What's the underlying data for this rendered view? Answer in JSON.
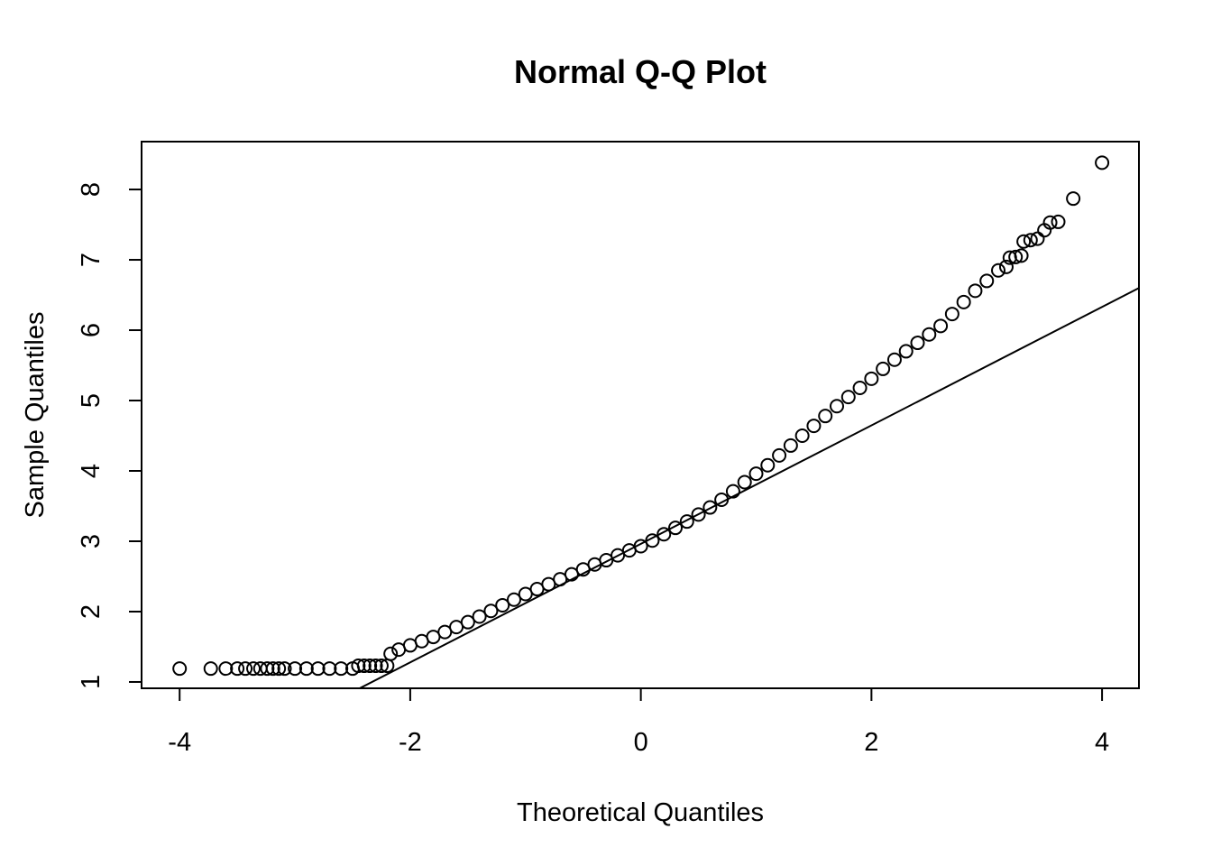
{
  "chart_data": {
    "type": "scatter",
    "title": "Normal Q-Q Plot",
    "x_label": "Theoretical Quantiles",
    "y_label": "Sample Quantiles",
    "x": [
      -4.0,
      -3.73,
      -3.6,
      -3.5,
      -3.43,
      -3.36,
      -3.3,
      -3.24,
      -3.19,
      -3.14,
      -3.09,
      -3.0,
      -2.9,
      -2.8,
      -2.7,
      -2.6,
      -2.5,
      -2.45,
      -2.4,
      -2.35,
      -2.3,
      -2.25,
      -2.2,
      -2.17,
      -2.1,
      -2.0,
      -1.9,
      -1.8,
      -1.7,
      -1.6,
      -1.5,
      -1.4,
      -1.3,
      -1.2,
      -1.1,
      -1.0,
      -0.9,
      -0.8,
      -0.7,
      -0.6,
      -0.5,
      -0.4,
      -0.3,
      -0.2,
      -0.1,
      0,
      0.1,
      0.2,
      0.3,
      0.4,
      0.5,
      0.6,
      0.7,
      0.8,
      0.9,
      1.0,
      1.1,
      1.2,
      1.3,
      1.4,
      1.5,
      1.6,
      1.7,
      1.8,
      1.9,
      2.0,
      2.1,
      2.2,
      2.3,
      2.4,
      2.5,
      2.6,
      2.7,
      2.8,
      2.9,
      3.0,
      3.1,
      3.17,
      3.2,
      3.25,
      3.3,
      3.32,
      3.38,
      3.44,
      3.5,
      3.55,
      3.62,
      3.75,
      4.0
    ],
    "y": [
      1.19,
      1.19,
      1.19,
      1.19,
      1.19,
      1.19,
      1.19,
      1.19,
      1.19,
      1.19,
      1.19,
      1.19,
      1.19,
      1.19,
      1.19,
      1.19,
      1.19,
      1.23,
      1.23,
      1.23,
      1.23,
      1.23,
      1.23,
      1.4,
      1.46,
      1.52,
      1.58,
      1.64,
      1.71,
      1.78,
      1.85,
      1.93,
      2.01,
      2.09,
      2.17,
      2.25,
      2.32,
      2.39,
      2.46,
      2.53,
      2.6,
      2.67,
      2.73,
      2.8,
      2.87,
      2.93,
      3.01,
      3.1,
      3.19,
      3.28,
      3.38,
      3.48,
      3.59,
      3.71,
      3.84,
      3.96,
      4.08,
      4.22,
      4.36,
      4.5,
      4.64,
      4.78,
      4.92,
      5.05,
      5.18,
      5.31,
      5.45,
      5.58,
      5.7,
      5.82,
      5.94,
      6.06,
      6.23,
      6.4,
      6.56,
      6.7,
      6.85,
      6.9,
      7.03,
      7.04,
      7.06,
      7.26,
      7.28,
      7.3,
      7.42,
      7.53,
      7.54,
      7.87,
      8.38
    ],
    "color": "#000000",
    "reference_line": {
      "x": [
        -2.45,
        4.32
      ],
      "y": [
        0.9,
        6.6
      ]
    },
    "xlim": [
      -4.33,
      4.32
    ],
    "ylim": [
      0.91,
      8.68
    ],
    "xticks": [
      -4,
      -2,
      0,
      2,
      4
    ],
    "yticks": [
      1,
      2,
      3,
      4,
      5,
      6,
      7,
      8
    ]
  }
}
